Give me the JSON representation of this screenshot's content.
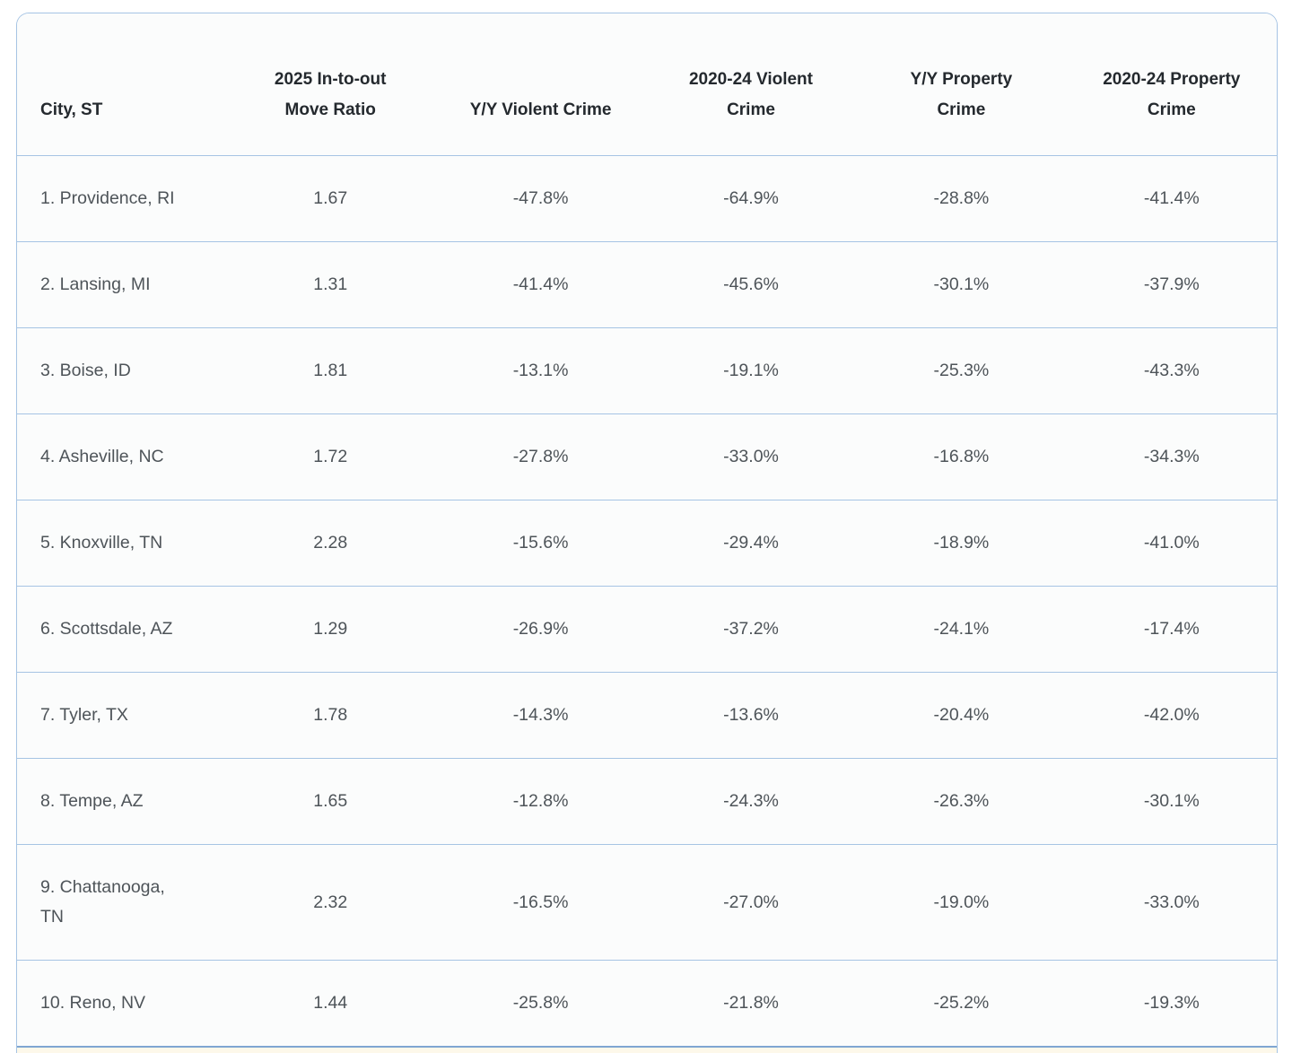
{
  "chart_data": {
    "type": "table",
    "title": "",
    "columns": [
      "City, ST",
      "2025 In-to-out\nMove Ratio",
      "Y/Y Violent Crime",
      "2020-24 Violent\nCrime",
      "Y/Y Property\nCrime",
      "2020-24 Property\nCrime"
    ],
    "rows": [
      [
        "1. Providence, RI",
        "1.67",
        "-47.8%",
        "-64.9%",
        "-28.8%",
        "-41.4%"
      ],
      [
        "2. Lansing, MI",
        "1.31",
        "-41.4%",
        "-45.6%",
        "-30.1%",
        "-37.9%"
      ],
      [
        "3. Boise, ID",
        "1.81",
        "-13.1%",
        "-19.1%",
        "-25.3%",
        "-43.3%"
      ],
      [
        "4. Asheville, NC",
        "1.72",
        "-27.8%",
        "-33.0%",
        "-16.8%",
        "-34.3%"
      ],
      [
        "5. Knoxville, TN",
        "2.28",
        "-15.6%",
        "-29.4%",
        "-18.9%",
        "-41.0%"
      ],
      [
        "6. Scottsdale, AZ",
        "1.29",
        "-26.9%",
        "-37.2%",
        "-24.1%",
        "-17.4%"
      ],
      [
        "7. Tyler, TX",
        "1.78",
        "-14.3%",
        "-13.6%",
        "-20.4%",
        "-42.0%"
      ],
      [
        "8. Tempe, AZ",
        "1.65",
        "-12.8%",
        "-24.3%",
        "-26.3%",
        "-30.1%"
      ],
      [
        "9. Chattanooga,\nTN",
        "2.32",
        "-16.5%",
        "-27.0%",
        "-19.0%",
        "-33.0%"
      ],
      [
        "10. Reno, NV",
        "1.44",
        "-25.8%",
        "-21.8%",
        "-25.2%",
        "-19.3%"
      ]
    ]
  },
  "colors": {
    "card_border": "#a6c4e4",
    "row_background": "#fbfcfc",
    "header_text": "#24292e",
    "cell_text": "#4e5459",
    "partial_row_background": "#fdf8ea",
    "partial_row_border": "#7fa6d2"
  }
}
